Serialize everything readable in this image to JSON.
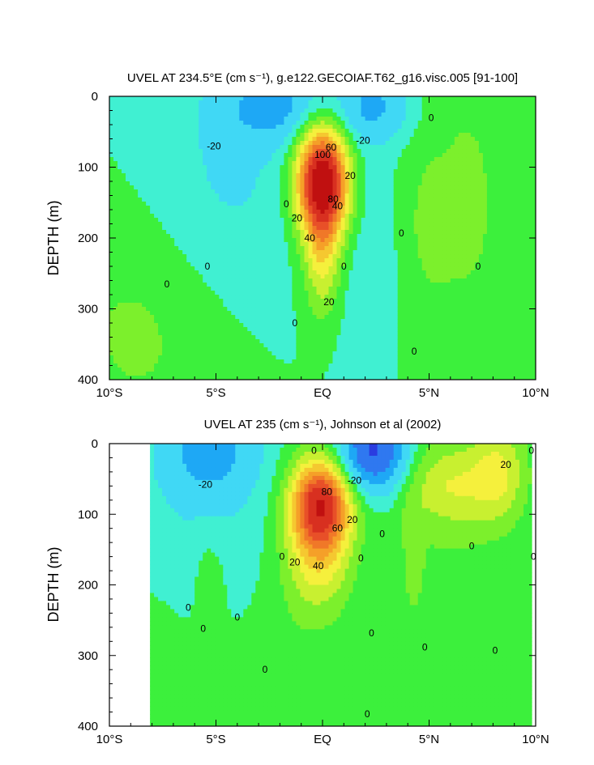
{
  "chart_data": [
    {
      "type": "heatmap",
      "title": "UVEL AT 234.5°E (cm s⁻¹), g.e122.GECOIAF.T62_g16.visc.005 [91-100]",
      "xlabel": "",
      "ylabel": "DEPTH (m)",
      "xlim": [
        -10,
        10
      ],
      "ylim": [
        400,
        0
      ],
      "x_ticks": [
        "10°S",
        "5°S",
        "EQ",
        "5°N",
        "10°N"
      ],
      "x_tick_values": [
        -10,
        -5,
        0,
        5,
        10
      ],
      "y_ticks": [
        "0",
        "100",
        "200",
        "300",
        "400"
      ],
      "y_tick_values": [
        0,
        100,
        200,
        300,
        400
      ],
      "contour_interval": 10,
      "contour_labels": [
        {
          "text": "-20",
          "x": -5.1,
          "y": 70
        },
        {
          "text": "-20",
          "x": 1.9,
          "y": 62
        },
        {
          "text": "0",
          "x": 5.1,
          "y": 30
        },
        {
          "text": "60",
          "x": 0.4,
          "y": 72
        },
        {
          "text": "100",
          "x": 0.0,
          "y": 82
        },
        {
          "text": "20",
          "x": 1.3,
          "y": 112
        },
        {
          "text": "20",
          "x": -1.2,
          "y": 172
        },
        {
          "text": "40",
          "x": 0.7,
          "y": 155
        },
        {
          "text": "80",
          "x": 0.5,
          "y": 145
        },
        {
          "text": "40",
          "x": -0.6,
          "y": 200
        },
        {
          "text": "0",
          "x": -1.7,
          "y": 152
        },
        {
          "text": "0",
          "x": 3.7,
          "y": 193
        },
        {
          "text": "0",
          "x": -5.4,
          "y": 240
        },
        {
          "text": "0",
          "x": 1.0,
          "y": 240
        },
        {
          "text": "0",
          "x": 7.3,
          "y": 240
        },
        {
          "text": "0",
          "x": -7.3,
          "y": 265
        },
        {
          "text": "20",
          "x": 0.3,
          "y": 290
        },
        {
          "text": "0",
          "x": -1.3,
          "y": 320
        },
        {
          "text": "0",
          "x": 4.3,
          "y": 360
        }
      ],
      "field": {
        "base": "zonal background, equatorial undercurrent core max ~110 cm/s near 120 m at EQ, westward surface flow near 2°S and 2°N",
        "features": [
          {
            "kind": "undercurrent",
            "x": 0.0,
            "y": 120,
            "sx": 0.85,
            "sy": 55,
            "amp": 112
          },
          {
            "kind": "undercurrent_tail",
            "x": 0.0,
            "y": 230,
            "sx": 0.6,
            "sy": 60,
            "amp": 30
          },
          {
            "kind": "westward",
            "x": -2.3,
            "y": 15,
            "sx": 1.6,
            "sy": 35,
            "amp": -28
          },
          {
            "kind": "westward",
            "x": 2.4,
            "y": 15,
            "sx": 1.4,
            "sy": 35,
            "amp": -26
          },
          {
            "kind": "westward",
            "x": -4.5,
            "y": 120,
            "sx": 2.6,
            "sy": 130,
            "amp": -12
          },
          {
            "kind": "westward",
            "x": 2.3,
            "y": 220,
            "sx": 1.2,
            "sy": 200,
            "amp": -9
          },
          {
            "kind": "eastward",
            "x": -8.5,
            "y": 330,
            "sx": 3.0,
            "sy": 120,
            "amp": 12
          },
          {
            "kind": "eastward",
            "x": 6.5,
            "y": 150,
            "sx": 2.8,
            "sy": 250,
            "amp": 11
          },
          {
            "kind": "eastward",
            "x": 5.0,
            "y": 180,
            "sx": 0.5,
            "sy": 45,
            "amp": 9
          }
        ]
      }
    },
    {
      "type": "heatmap",
      "title": "UVEL AT 235 (cm s⁻¹), Johnson et al (2002)",
      "xlabel": "",
      "ylabel": "DEPTH (m)",
      "xlim": [
        -10,
        10
      ],
      "ylim": [
        400,
        0
      ],
      "data_extent_x": [
        -8,
        9.8
      ],
      "x_ticks": [
        "10°S",
        "5°S",
        "EQ",
        "5°N",
        "10°N"
      ],
      "x_tick_values": [
        -10,
        -5,
        0,
        5,
        10
      ],
      "y_ticks": [
        "0",
        "100",
        "200",
        "300",
        "400"
      ],
      "y_tick_values": [
        0,
        100,
        200,
        300,
        400
      ],
      "contour_interval": 10,
      "contour_labels": [
        {
          "text": "0",
          "x": -0.4,
          "y": 10
        },
        {
          "text": "-20",
          "x": -5.5,
          "y": 58
        },
        {
          "text": "20",
          "x": 8.6,
          "y": 30
        },
        {
          "text": "0",
          "x": 9.8,
          "y": 10
        },
        {
          "text": "-20",
          "x": 1.5,
          "y": 52
        },
        {
          "text": "80",
          "x": 0.2,
          "y": 68
        },
        {
          "text": "60",
          "x": 0.7,
          "y": 120
        },
        {
          "text": "20",
          "x": 1.4,
          "y": 108
        },
        {
          "text": "40",
          "x": -0.2,
          "y": 173
        },
        {
          "text": "20",
          "x": -1.3,
          "y": 168
        },
        {
          "text": "0",
          "x": -1.9,
          "y": 160
        },
        {
          "text": "0",
          "x": 2.8,
          "y": 128
        },
        {
          "text": "0",
          "x": 1.8,
          "y": 162
        },
        {
          "text": "0",
          "x": 7.0,
          "y": 145
        },
        {
          "text": "0",
          "x": 9.9,
          "y": 160
        },
        {
          "text": "0",
          "x": -6.3,
          "y": 232
        },
        {
          "text": "0",
          "x": -4.0,
          "y": 246
        },
        {
          "text": "0",
          "x": -5.6,
          "y": 262
        },
        {
          "text": "0",
          "x": 2.3,
          "y": 268
        },
        {
          "text": "0",
          "x": 4.8,
          "y": 288
        },
        {
          "text": "0",
          "x": 8.1,
          "y": 293
        },
        {
          "text": "0",
          "x": -2.7,
          "y": 320
        },
        {
          "text": "0",
          "x": 2.1,
          "y": 383
        }
      ],
      "field": {
        "base": "observed section, undercurrent core ~90 cm/s near 90 m slightly south of EQ, strong westward surface jet near 2.5°N",
        "features": [
          {
            "kind": "undercurrent",
            "x": -0.1,
            "y": 85,
            "sx": 1.0,
            "sy": 45,
            "amp": 90
          },
          {
            "kind": "undercurrent_tail",
            "x": -0.2,
            "y": 170,
            "sx": 1.1,
            "sy": 50,
            "amp": 28
          },
          {
            "kind": "westward",
            "x": 2.4,
            "y": 10,
            "sx": 1.1,
            "sy": 40,
            "amp": -65
          },
          {
            "kind": "westward",
            "x": -5.3,
            "y": 10,
            "sx": 1.6,
            "sy": 50,
            "amp": -28
          },
          {
            "kind": "westward",
            "x": -5.0,
            "y": 140,
            "sx": 2.6,
            "sy": 120,
            "amp": -10
          },
          {
            "kind": "westward",
            "x": 3.0,
            "y": 250,
            "sx": 1.6,
            "sy": 200,
            "amp": -7
          },
          {
            "kind": "eastward",
            "x": 6.0,
            "y": 60,
            "sx": 1.5,
            "sy": 40,
            "amp": 22
          },
          {
            "kind": "eastward",
            "x": 8.3,
            "y": 40,
            "sx": 0.9,
            "sy": 50,
            "amp": 26
          },
          {
            "kind": "eastward",
            "x": 5.0,
            "y": 160,
            "sx": 2.6,
            "sy": 260,
            "amp": 10
          },
          {
            "kind": "eastward",
            "x": -5.3,
            "y": 190,
            "sx": 0.6,
            "sy": 60,
            "amp": 10
          },
          {
            "kind": "eastward",
            "x": 4.2,
            "y": 160,
            "sx": 0.4,
            "sy": 70,
            "amp": 9
          },
          {
            "kind": "eastward",
            "x": -7.8,
            "y": 330,
            "sx": 1.2,
            "sy": 90,
            "amp": 9
          },
          {
            "kind": "eastward",
            "x": -2.0,
            "y": 300,
            "sx": 2.5,
            "sy": 160,
            "amp": 8
          }
        ]
      }
    }
  ]
}
